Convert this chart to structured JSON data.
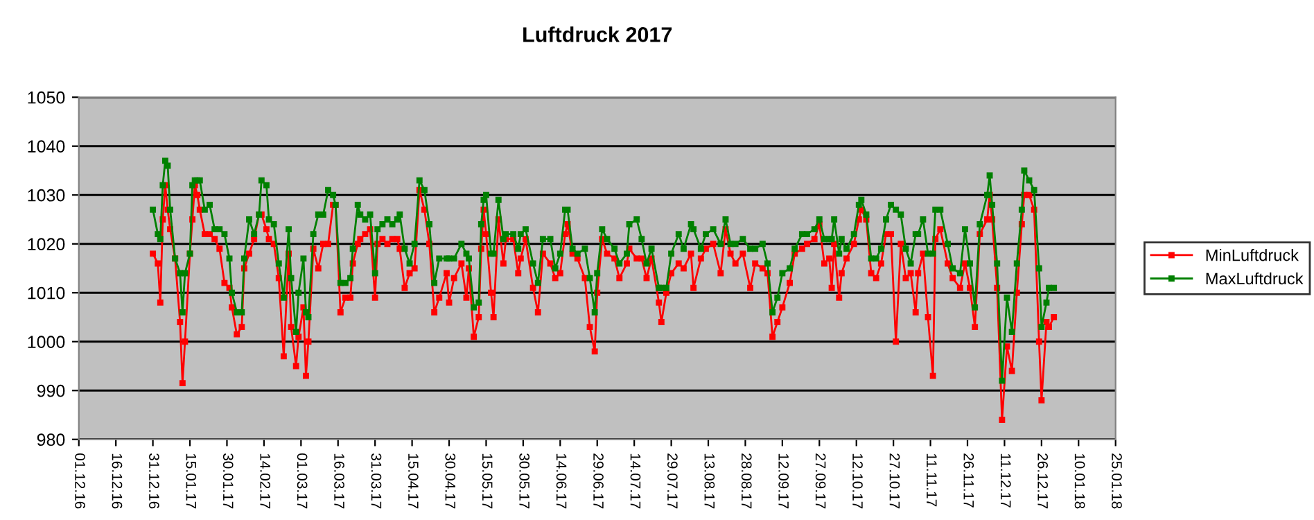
{
  "chart_data": {
    "type": "line",
    "title": "Luftdruck 2017",
    "x": [
      "2016-12-31",
      "2017-01-02",
      "2017-01-03",
      "2017-01-04",
      "2017-01-05",
      "2017-01-06",
      "2017-01-07",
      "2017-01-09",
      "2017-01-11",
      "2017-01-12",
      "2017-01-13",
      "2017-01-15",
      "2017-01-16",
      "2017-01-17",
      "2017-01-18",
      "2017-01-19",
      "2017-01-21",
      "2017-01-23",
      "2017-01-25",
      "2017-01-27",
      "2017-01-29",
      "2017-01-31",
      "2017-02-01",
      "2017-02-03",
      "2017-02-05",
      "2017-02-06",
      "2017-02-08",
      "2017-02-10",
      "2017-02-12",
      "2017-02-13",
      "2017-02-15",
      "2017-02-16",
      "2017-02-18",
      "2017-02-20",
      "2017-02-22",
      "2017-02-24",
      "2017-02-25",
      "2017-02-27",
      "2017-02-28",
      "2017-03-02",
      "2017-03-03",
      "2017-03-04",
      "2017-03-06",
      "2017-03-08",
      "2017-03-10",
      "2017-03-12",
      "2017-03-14",
      "2017-03-15",
      "2017-03-17",
      "2017-03-19",
      "2017-03-21",
      "2017-03-22",
      "2017-03-24",
      "2017-03-25",
      "2017-03-27",
      "2017-03-29",
      "2017-03-31",
      "2017-04-01",
      "2017-04-03",
      "2017-04-05",
      "2017-04-07",
      "2017-04-09",
      "2017-04-10",
      "2017-04-12",
      "2017-04-14",
      "2017-04-16",
      "2017-04-18",
      "2017-04-20",
      "2017-04-22",
      "2017-04-24",
      "2017-04-26",
      "2017-04-29",
      "2017-04-30",
      "2017-05-02",
      "2017-05-05",
      "2017-05-07",
      "2017-05-08",
      "2017-05-10",
      "2017-05-12",
      "2017-05-13",
      "2017-05-14",
      "2017-05-15",
      "2017-05-17",
      "2017-05-18",
      "2017-05-20",
      "2017-05-22",
      "2017-05-23",
      "2017-05-26",
      "2017-05-28",
      "2017-05-29",
      "2017-05-31",
      "2017-06-03",
      "2017-06-05",
      "2017-06-07",
      "2017-06-10",
      "2017-06-12",
      "2017-06-14",
      "2017-06-16",
      "2017-06-17",
      "2017-06-19",
      "2017-06-21",
      "2017-06-24",
      "2017-06-26",
      "2017-06-28",
      "2017-06-29",
      "2017-07-01",
      "2017-07-03",
      "2017-07-06",
      "2017-07-08",
      "2017-07-11",
      "2017-07-12",
      "2017-07-15",
      "2017-07-17",
      "2017-07-19",
      "2017-07-21",
      "2017-07-24",
      "2017-07-25",
      "2017-07-27",
      "2017-07-29",
      "2017-08-01",
      "2017-08-03",
      "2017-08-06",
      "2017-08-07",
      "2017-08-10",
      "2017-08-12",
      "2017-08-15",
      "2017-08-18",
      "2017-08-20",
      "2017-08-22",
      "2017-08-24",
      "2017-08-27",
      "2017-08-30",
      "2017-09-01",
      "2017-09-04",
      "2017-09-06",
      "2017-09-08",
      "2017-09-10",
      "2017-09-12",
      "2017-09-15",
      "2017-09-17",
      "2017-09-20",
      "2017-09-22",
      "2017-09-25",
      "2017-09-27",
      "2017-09-29",
      "2017-10-01",
      "2017-10-02",
      "2017-10-03",
      "2017-10-05",
      "2017-10-06",
      "2017-10-08",
      "2017-10-11",
      "2017-10-13",
      "2017-10-14",
      "2017-10-16",
      "2017-10-18",
      "2017-10-20",
      "2017-10-22",
      "2017-10-24",
      "2017-10-26",
      "2017-10-28",
      "2017-10-30",
      "2017-11-01",
      "2017-11-03",
      "2017-11-05",
      "2017-11-06",
      "2017-11-08",
      "2017-11-10",
      "2017-11-12",
      "2017-11-13",
      "2017-11-15",
      "2017-11-18",
      "2017-11-20",
      "2017-11-23",
      "2017-11-25",
      "2017-11-27",
      "2017-11-29",
      "2017-12-01",
      "2017-12-04",
      "2017-12-05",
      "2017-12-06",
      "2017-12-08",
      "2017-12-10",
      "2017-12-12",
      "2017-12-14",
      "2017-12-16",
      "2017-12-18",
      "2017-12-19",
      "2017-12-21",
      "2017-12-23",
      "2017-12-25",
      "2017-12-26",
      "2017-12-28",
      "2017-12-29",
      "2017-12-31"
    ],
    "series": [
      {
        "name": "MinLuftdruck",
        "color": "#ff0000",
        "values": [
          1018,
          1016,
          1008,
          1025,
          1032,
          1027,
          1023,
          1017,
          1004,
          991.5,
          1000,
          1018,
          1025,
          1032,
          1030,
          1027,
          1022,
          1022,
          1021,
          1019,
          1012,
          1011,
          1007,
          1001.5,
          1003,
          1015,
          1018,
          1021,
          1026,
          1026,
          1023,
          1021,
          1020,
          1013,
          997,
          1018,
          1003,
          995,
          1001,
          1007,
          993,
          1000,
          1019,
          1015,
          1020,
          1020,
          1028,
          1028,
          1006,
          1009,
          1009,
          1016,
          1020,
          1021,
          1022,
          1023,
          1009,
          1020,
          1021,
          1020,
          1021,
          1021,
          1019,
          1011,
          1014,
          1015,
          1031,
          1027,
          1020,
          1006,
          1009,
          1014,
          1008,
          1013,
          1016,
          1009,
          1015,
          1001,
          1005,
          1019,
          1027,
          1022,
          1010,
          1005,
          1025,
          1016,
          1021,
          1021,
          1014,
          1017,
          1021,
          1011,
          1006,
          1018,
          1016,
          1013,
          1014,
          1022,
          1024,
          1018,
          1017,
          1013,
          1003,
          998,
          1010,
          1021,
          1018,
          1017,
          1013,
          1016,
          1019,
          1017,
          1017,
          1013,
          1017,
          1008,
          1004,
          1010,
          1014,
          1016,
          1015,
          1018,
          1011,
          1017,
          1019,
          1020,
          1014,
          1023,
          1018,
          1016,
          1018,
          1011,
          1016,
          1015,
          1014,
          1001,
          1004,
          1007,
          1012,
          1018,
          1019,
          1020,
          1021,
          1024,
          1016,
          1017,
          1011,
          1020,
          1009,
          1014,
          1017,
          1020,
          1025,
          1027,
          1025,
          1014,
          1013,
          1016,
          1022,
          1022,
          1000,
          1020,
          1013,
          1014,
          1006,
          1014,
          1018,
          1005,
          993,
          1021,
          1023,
          1016,
          1013,
          1011,
          1016,
          1011,
          1003,
          1022,
          1025,
          1030,
          1025,
          1011,
          984,
          999,
          994,
          1010,
          1024,
          1030,
          1030,
          1027,
          1000,
          988,
          1004,
          1003,
          1005
        ]
      },
      {
        "name": "MaxLuftdruck",
        "color": "#008000",
        "values": [
          1027,
          1022,
          1021,
          1032,
          1037,
          1036,
          1027,
          1017,
          1014,
          1006,
          1014,
          1018,
          1032,
          1033,
          1033,
          1033,
          1027,
          1028,
          1023,
          1023,
          1022,
          1017,
          1010,
          1006,
          1006,
          1017,
          1025,
          1022,
          1026,
          1033,
          1032,
          1025,
          1024,
          1016,
          1009,
          1023,
          1013,
          1002,
          1010,
          1017,
          1006,
          1005,
          1022,
          1026,
          1026,
          1031,
          1030,
          1028,
          1012,
          1012,
          1013,
          1019,
          1028,
          1026,
          1025,
          1026,
          1014,
          1023,
          1024,
          1025,
          1024,
          1025,
          1026,
          1019,
          1016,
          1020,
          1033,
          1031,
          1024,
          1012,
          1017,
          1017,
          1017,
          1017,
          1020,
          1018,
          1017,
          1007,
          1008,
          1024,
          1029,
          1030,
          1018,
          1018,
          1029,
          1021,
          1022,
          1022,
          1019,
          1022,
          1023,
          1016,
          1012,
          1021,
          1021,
          1015,
          1018,
          1027,
          1027,
          1019,
          1018,
          1019,
          1013,
          1006,
          1014,
          1023,
          1021,
          1019,
          1016,
          1018,
          1024,
          1025,
          1021,
          1016,
          1019,
          1011,
          1011,
          1011,
          1018,
          1022,
          1019,
          1024,
          1023,
          1019,
          1022,
          1023,
          1020,
          1025,
          1020,
          1020,
          1021,
          1019,
          1019,
          1020,
          1016,
          1006,
          1009,
          1014,
          1015,
          1019,
          1022,
          1022,
          1023,
          1025,
          1021,
          1021,
          1021,
          1025,
          1018,
          1021,
          1019,
          1022,
          1028,
          1029,
          1026,
          1017,
          1017,
          1019,
          1025,
          1028,
          1027,
          1026,
          1019,
          1016,
          1022,
          1022,
          1025,
          1018,
          1018,
          1027,
          1027,
          1020,
          1015,
          1014,
          1023,
          1016,
          1007,
          1024,
          1030,
          1034,
          1028,
          1016,
          992,
          1009,
          1002,
          1016,
          1027,
          1035,
          1033,
          1031,
          1015,
          1003,
          1008,
          1011,
          1011
        ]
      }
    ],
    "xlim": [
      "2016-12-01",
      "2018-01-25"
    ],
    "xticks": [
      {
        "value": "2016-12-01",
        "label": "01.12.16"
      },
      {
        "value": "2016-12-16",
        "label": "16.12.16"
      },
      {
        "value": "2016-12-31",
        "label": "31.12.16"
      },
      {
        "value": "2017-01-15",
        "label": "15.01.17"
      },
      {
        "value": "2017-01-30",
        "label": "30.01.17"
      },
      {
        "value": "2017-02-14",
        "label": "14.02.17"
      },
      {
        "value": "2017-03-01",
        "label": "01.03.17"
      },
      {
        "value": "2017-03-16",
        "label": "16.03.17"
      },
      {
        "value": "2017-03-31",
        "label": "31.03.17"
      },
      {
        "value": "2017-04-15",
        "label": "15.04.17"
      },
      {
        "value": "2017-04-30",
        "label": "30.04.17"
      },
      {
        "value": "2017-05-15",
        "label": "15.05.17"
      },
      {
        "value": "2017-05-30",
        "label": "30.05.17"
      },
      {
        "value": "2017-06-14",
        "label": "14.06.17"
      },
      {
        "value": "2017-06-29",
        "label": "29.06.17"
      },
      {
        "value": "2017-07-14",
        "label": "14.07.17"
      },
      {
        "value": "2017-07-29",
        "label": "29.07.17"
      },
      {
        "value": "2017-08-13",
        "label": "13.08.17"
      },
      {
        "value": "2017-08-28",
        "label": "28.08.17"
      },
      {
        "value": "2017-09-12",
        "label": "12.09.17"
      },
      {
        "value": "2017-09-27",
        "label": "27.09.17"
      },
      {
        "value": "2017-10-12",
        "label": "12.10.17"
      },
      {
        "value": "2017-10-27",
        "label": "27.10.17"
      },
      {
        "value": "2017-11-11",
        "label": "11.11.17"
      },
      {
        "value": "2017-11-26",
        "label": "26.11.17"
      },
      {
        "value": "2017-12-11",
        "label": "11.12.17"
      },
      {
        "value": "2017-12-26",
        "label": "26.12.17"
      },
      {
        "value": "2018-01-10",
        "label": "10.01.18"
      },
      {
        "value": "2018-01-25",
        "label": "25.01.18"
      }
    ],
    "ylim": [
      980,
      1050
    ],
    "yticks": [
      980,
      990,
      1000,
      1010,
      1020,
      1030,
      1040,
      1050
    ],
    "grid": "y",
    "legend": "right",
    "marker": "square",
    "line_style": "solid"
  }
}
